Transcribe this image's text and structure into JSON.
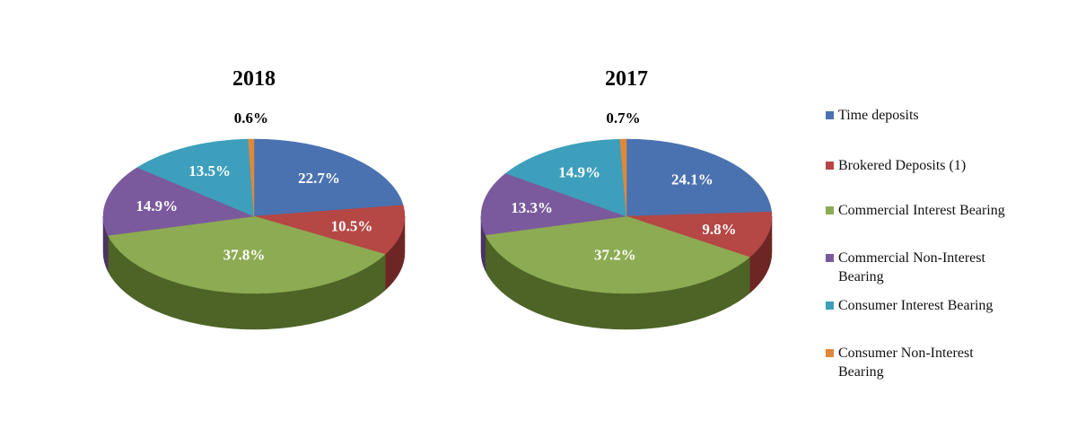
{
  "chart_data": [
    {
      "type": "pie",
      "title": "2018",
      "categories": [
        "Time deposits",
        "Brokered Deposits (1)",
        "Commercial Interest Bearing",
        "Commercial Non-Interest Bearing",
        "Consumer Interest Bearing",
        "Consumer Non-Interest Bearing"
      ],
      "values": [
        22.7,
        10.5,
        37.8,
        14.9,
        13.5,
        0.6
      ],
      "labels": [
        "22.7%",
        "10.5%",
        "37.8%",
        "14.9%",
        "13.5%",
        "0.6%"
      ],
      "legend": "right"
    },
    {
      "type": "pie",
      "title": "2017",
      "categories": [
        "Time deposits",
        "Brokered Deposits (1)",
        "Commercial Interest Bearing",
        "Commercial Non-Interest Bearing",
        "Consumer Interest Bearing",
        "Consumer Non-Interest Bearing"
      ],
      "values": [
        24.1,
        9.8,
        37.2,
        13.3,
        14.9,
        0.7
      ],
      "labels": [
        "24.1%",
        "9.8%",
        "37.2%",
        "13.3%",
        "14.9%",
        "0.7%"
      ],
      "legend": "right"
    }
  ],
  "legend": {
    "items": [
      {
        "label": "Time deposits",
        "color": "#4a72b0"
      },
      {
        "label": "Brokered Deposits (1)",
        "color": "#b54744"
      },
      {
        "label": "Commercial Interest Bearing",
        "color": "#8cab52"
      },
      {
        "label": "Commercial Non-Interest Bearing",
        "color": "#7a5a9c"
      },
      {
        "label": "Consumer Interest Bearing",
        "color": "#3d9fbb"
      },
      {
        "label": "Consumer Non-Interest Bearing",
        "color": "#e0883a"
      }
    ]
  },
  "colors": {
    "side": [
      "#2d4a74",
      "#6e2624",
      "#4d6426",
      "#4b3462",
      "#24677c",
      "#8e521f"
    ],
    "label_text_on_slice": "#ffffff",
    "label_text_outside": "#000000"
  }
}
